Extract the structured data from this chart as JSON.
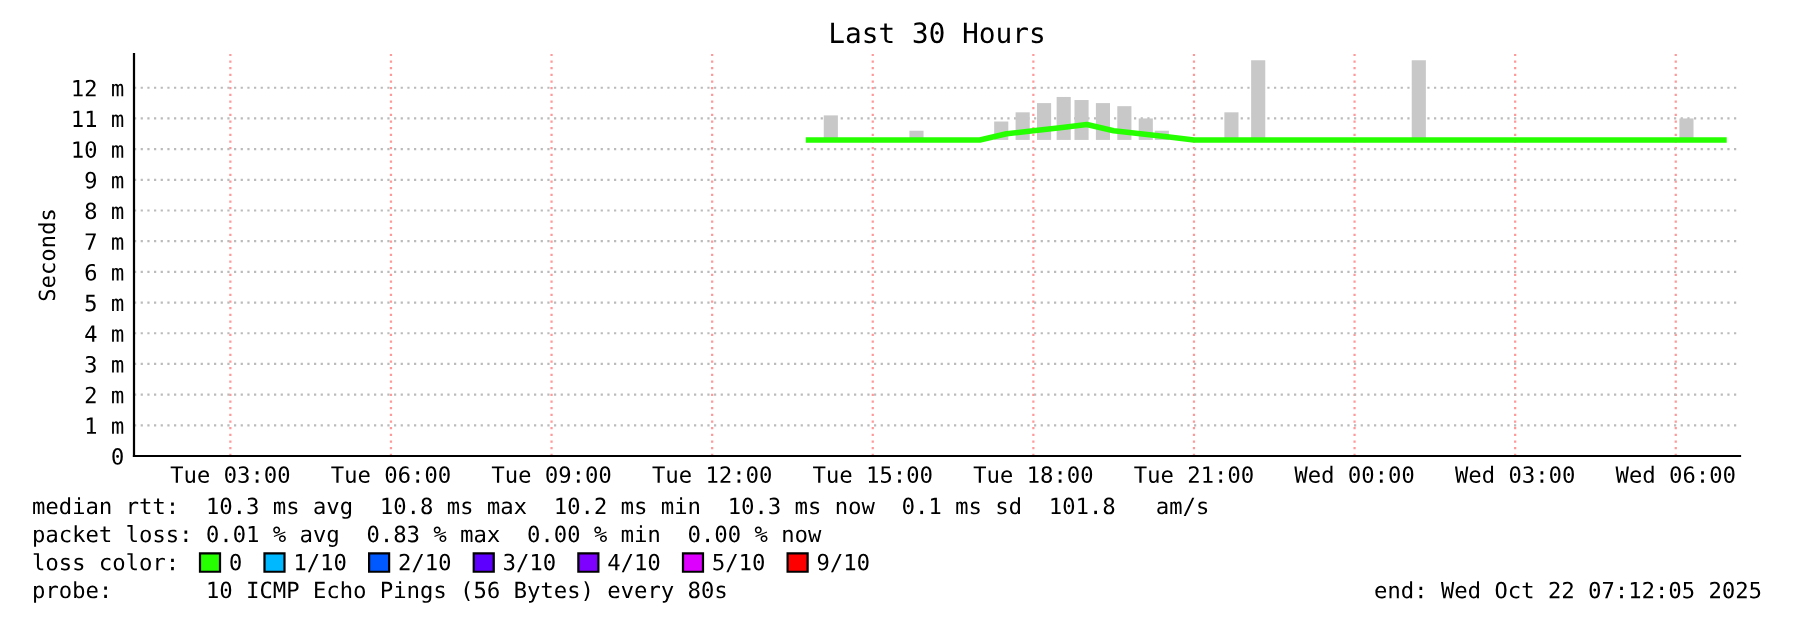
{
  "chart_data": {
    "type": "line",
    "title": "Last 30 Hours",
    "ylabel": "Seconds",
    "xlim": [
      "2025-10-21T01:12",
      "2025-10-22T07:12"
    ],
    "ylim": [
      0,
      13.1
    ],
    "xticks": [
      {
        "value": "2025-10-21T03:00",
        "label": "Tue 03:00"
      },
      {
        "value": "2025-10-21T06:00",
        "label": "Tue 06:00"
      },
      {
        "value": "2025-10-21T09:00",
        "label": "Tue 09:00"
      },
      {
        "value": "2025-10-21T12:00",
        "label": "Tue 12:00"
      },
      {
        "value": "2025-10-21T15:00",
        "label": "Tue 15:00"
      },
      {
        "value": "2025-10-21T18:00",
        "label": "Tue 18:00"
      },
      {
        "value": "2025-10-21T21:00",
        "label": "Tue 21:00"
      },
      {
        "value": "2025-10-22T00:00",
        "label": "Wed 00:00"
      },
      {
        "value": "2025-10-22T03:00",
        "label": "Wed 03:00"
      },
      {
        "value": "2025-10-22T06:00",
        "label": "Wed 06:00"
      }
    ],
    "yticks": [
      0,
      {
        "value": 1,
        "label": "1 m"
      },
      {
        "value": 2,
        "label": "2 m"
      },
      {
        "value": 3,
        "label": "3 m"
      },
      {
        "value": 4,
        "label": "4 m"
      },
      {
        "value": 5,
        "label": "5 m"
      },
      {
        "value": 6,
        "label": "6 m"
      },
      {
        "value": 7,
        "label": "7 m"
      },
      {
        "value": 8,
        "label": "8 m"
      },
      {
        "value": 9,
        "label": "9 m"
      },
      {
        "value": 10,
        "label": "10 m"
      },
      {
        "value": 11,
        "label": "11 m"
      },
      {
        "value": 12,
        "label": "12 m"
      }
    ],
    "grid": true,
    "legend": "bottom",
    "legend_title": "loss color:",
    "series": [
      {
        "type": "bar",
        "color": "#c8c8c8",
        "x": [
          "2025-10-21T14:13",
          "2025-10-21T15:49",
          "2025-10-21T17:24",
          "2025-10-21T17:48",
          "2025-10-21T18:12",
          "2025-10-21T18:34",
          "2025-10-21T18:54",
          "2025-10-21T19:18",
          "2025-10-21T19:42",
          "2025-10-21T20:06",
          "2025-10-21T20:24",
          "2025-10-21T21:42",
          "2025-10-21T22:12",
          "2025-10-22T01:12",
          "2025-10-22T06:12"
        ],
        "values": [
          0.8,
          0.3,
          0.6,
          0.9,
          1.2,
          1.4,
          1.3,
          1.2,
          1.1,
          0.7,
          0.3,
          0.9,
          2.6,
          2.6,
          0.7
        ],
        "base": [
          10.3,
          10.3,
          10.3,
          10.3,
          10.3,
          10.3,
          10.3,
          10.3,
          10.3,
          10.3,
          10.3,
          10.3,
          10.3,
          10.3,
          10.3
        ]
      },
      {
        "name": "0",
        "color": "#26ff00",
        "x": [
          "2025-10-21T13:48",
          "2025-10-21T17:00",
          "2025-10-21T17:30",
          "2025-10-21T18:00",
          "2025-10-21T18:30",
          "2025-10-21T19:00",
          "2025-10-21T19:30",
          "2025-10-21T20:00",
          "2025-10-21T20:30",
          "2025-10-21T21:00",
          "2025-10-22T06:54"
        ],
        "values": [
          10.3,
          10.3,
          10.5,
          10.6,
          10.7,
          10.8,
          10.6,
          10.5,
          10.4,
          10.3,
          10.3
        ]
      },
      {
        "name": "1/10",
        "color": "#00b8ff"
      },
      {
        "name": "2/10",
        "color": "#0059ff"
      },
      {
        "name": "3/10",
        "color": "#5e00ff"
      },
      {
        "name": "4/10",
        "color": "#7e00ff"
      },
      {
        "name": "5/10",
        "color": "#dd00ff"
      },
      {
        "name": "9/10",
        "color": "#ff0000"
      }
    ],
    "annotations": [
      "median rtt:  10.3 ms avg  10.8 ms max  10.2 ms min  10.3 ms now  0.1 ms sd  101.8   am/s",
      "packet loss: 0.01 % avg  0.83 % max  0.00 % min  0.00 % now",
      "probe:       10 ICMP Echo Pings (56 Bytes) every 80s",
      "end: Wed Oct 22 07:12:05 2025"
    ]
  }
}
